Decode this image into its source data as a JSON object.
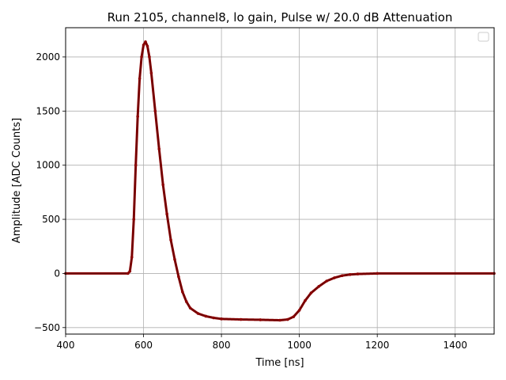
{
  "chart_data": {
    "type": "scatter",
    "title": "Run 2105, channel8, lo gain, Pulse w/ 20.0 dB Attenuation",
    "xlabel": "Time [ns]",
    "ylabel": "Amplitude [ADC Counts]",
    "xlim": [
      400,
      1500
    ],
    "ylim": [
      -560,
      2270
    ],
    "xticks": [
      400,
      600,
      800,
      1000,
      1200,
      1400
    ],
    "yticks": [
      -500,
      0,
      500,
      1000,
      1500,
      2000
    ],
    "grid": true,
    "legend": "top-right (empty)",
    "series": [
      {
        "color": "#8b0000",
        "points": [
          [
            400,
            0
          ],
          [
            560,
            0
          ],
          [
            565,
            20
          ],
          [
            570,
            150
          ],
          [
            575,
            500
          ],
          [
            580,
            1000
          ],
          [
            585,
            1450
          ],
          [
            590,
            1800
          ],
          [
            595,
            2000
          ],
          [
            600,
            2110
          ],
          [
            605,
            2140
          ],
          [
            610,
            2100
          ],
          [
            615,
            2000
          ],
          [
            620,
            1850
          ],
          [
            630,
            1500
          ],
          [
            640,
            1150
          ],
          [
            650,
            820
          ],
          [
            660,
            550
          ],
          [
            670,
            310
          ],
          [
            680,
            130
          ],
          [
            690,
            -30
          ],
          [
            700,
            -170
          ],
          [
            710,
            -260
          ],
          [
            720,
            -320
          ],
          [
            740,
            -370
          ],
          [
            760,
            -395
          ],
          [
            780,
            -410
          ],
          [
            800,
            -420
          ],
          [
            850,
            -425
          ],
          [
            900,
            -428
          ],
          [
            950,
            -432
          ],
          [
            970,
            -425
          ],
          [
            985,
            -400
          ],
          [
            1000,
            -340
          ],
          [
            1015,
            -250
          ],
          [
            1030,
            -180
          ],
          [
            1050,
            -120
          ],
          [
            1070,
            -70
          ],
          [
            1090,
            -40
          ],
          [
            1110,
            -20
          ],
          [
            1130,
            -10
          ],
          [
            1150,
            -5
          ],
          [
            1200,
            0
          ],
          [
            1500,
            0
          ]
        ]
      }
    ]
  }
}
